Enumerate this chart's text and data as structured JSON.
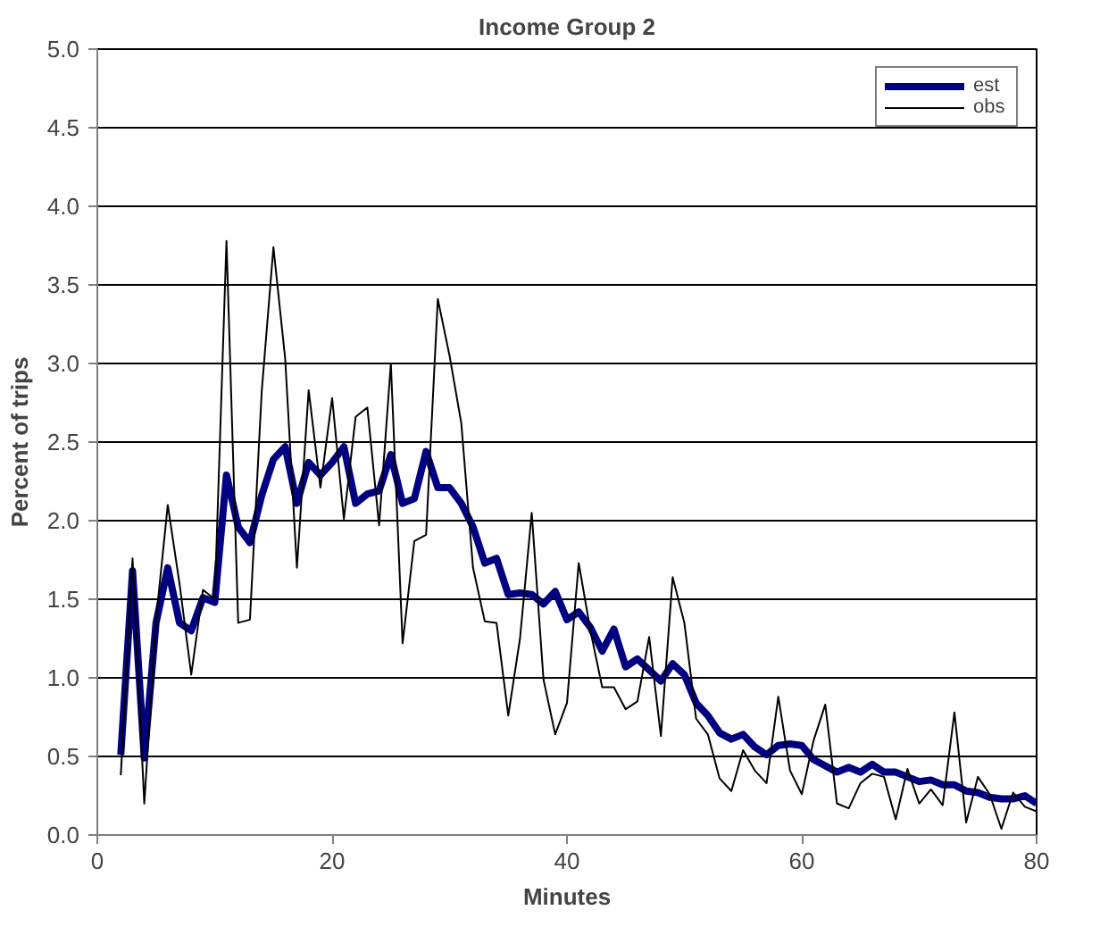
{
  "chart_data": {
    "type": "line",
    "title": "Income Group 2",
    "xlabel": "Minutes",
    "ylabel": "Percent of trips",
    "x": [
      2,
      3,
      4,
      5,
      6,
      7,
      8,
      9,
      10,
      11,
      12,
      13,
      14,
      15,
      16,
      17,
      18,
      19,
      20,
      21,
      22,
      23,
      24,
      25,
      26,
      27,
      28,
      29,
      30,
      31,
      32,
      33,
      34,
      35,
      36,
      37,
      38,
      39,
      40,
      41,
      42,
      43,
      44,
      45,
      46,
      47,
      48,
      49,
      50,
      51,
      52,
      53,
      54,
      55,
      56,
      57,
      58,
      59,
      60,
      61,
      62,
      63,
      64,
      65,
      66,
      67,
      68,
      69,
      70,
      71,
      72,
      73,
      74,
      75,
      76,
      77,
      78,
      79,
      80
    ],
    "series": [
      {
        "name": "est",
        "color": "#000080",
        "values": [
          0.51,
          1.68,
          0.49,
          1.35,
          1.7,
          1.35,
          1.3,
          1.51,
          1.48,
          2.29,
          1.96,
          1.86,
          2.16,
          2.39,
          2.47,
          2.11,
          2.37,
          2.29,
          2.37,
          2.47,
          2.11,
          2.17,
          2.19,
          2.42,
          2.11,
          2.14,
          2.44,
          2.21,
          2.21,
          2.11,
          1.96,
          1.73,
          1.76,
          1.53,
          1.54,
          1.53,
          1.47,
          1.55,
          1.37,
          1.42,
          1.32,
          1.17,
          1.31,
          1.07,
          1.12,
          1.05,
          0.98,
          1.09,
          1.02,
          0.84,
          0.76,
          0.65,
          0.61,
          0.64,
          0.56,
          0.51,
          0.57,
          0.58,
          0.57,
          0.48,
          0.44,
          0.4,
          0.43,
          0.4,
          0.45,
          0.4,
          0.4,
          0.37,
          0.34,
          0.35,
          0.32,
          0.32,
          0.28,
          0.27,
          0.24,
          0.23,
          0.23,
          0.25,
          0.2
        ]
      },
      {
        "name": "obs",
        "color": "#000000",
        "values": [
          0.38,
          1.76,
          0.2,
          1.37,
          2.1,
          1.6,
          1.02,
          1.56,
          1.5,
          3.78,
          1.35,
          1.37,
          2.82,
          3.74,
          3.03,
          1.7,
          2.83,
          2.21,
          2.78,
          2.01,
          2.66,
          2.72,
          1.97,
          3.0,
          1.22,
          1.87,
          1.91,
          3.41,
          3.05,
          2.62,
          1.7,
          1.36,
          1.35,
          0.76,
          1.25,
          2.05,
          0.99,
          0.64,
          0.84,
          1.73,
          1.3,
          0.94,
          0.94,
          0.8,
          0.85,
          1.26,
          0.63,
          1.64,
          1.35,
          0.74,
          0.64,
          0.36,
          0.28,
          0.54,
          0.41,
          0.33,
          0.88,
          0.41,
          0.26,
          0.6,
          0.83,
          0.2,
          0.17,
          0.33,
          0.39,
          0.37,
          0.1,
          0.42,
          0.2,
          0.29,
          0.19,
          0.78,
          0.08,
          0.37,
          0.26,
          0.04,
          0.27,
          0.18,
          0.15
        ]
      }
    ],
    "xlim": [
      0,
      80
    ],
    "xticks": [
      0,
      20,
      40,
      60,
      80
    ],
    "ylim": [
      0,
      5
    ],
    "yticks": [
      {
        "value": 0,
        "label": "0.0"
      },
      {
        "value": 0.5,
        "label": "0.5"
      },
      {
        "value": 1,
        "label": "1.0"
      },
      {
        "value": 1.5,
        "label": "1.5"
      },
      {
        "value": 2,
        "label": "2.0"
      },
      {
        "value": 2.5,
        "label": "2.5"
      },
      {
        "value": 3,
        "label": "3.0"
      },
      {
        "value": 3.5,
        "label": "3.5"
      },
      {
        "value": 4,
        "label": "4.0"
      },
      {
        "value": 4.5,
        "label": "4.5"
      },
      {
        "value": 5,
        "label": "5.0"
      }
    ],
    "grid": "y",
    "legend": "top right",
    "marker": "none",
    "line_style": "solid"
  }
}
